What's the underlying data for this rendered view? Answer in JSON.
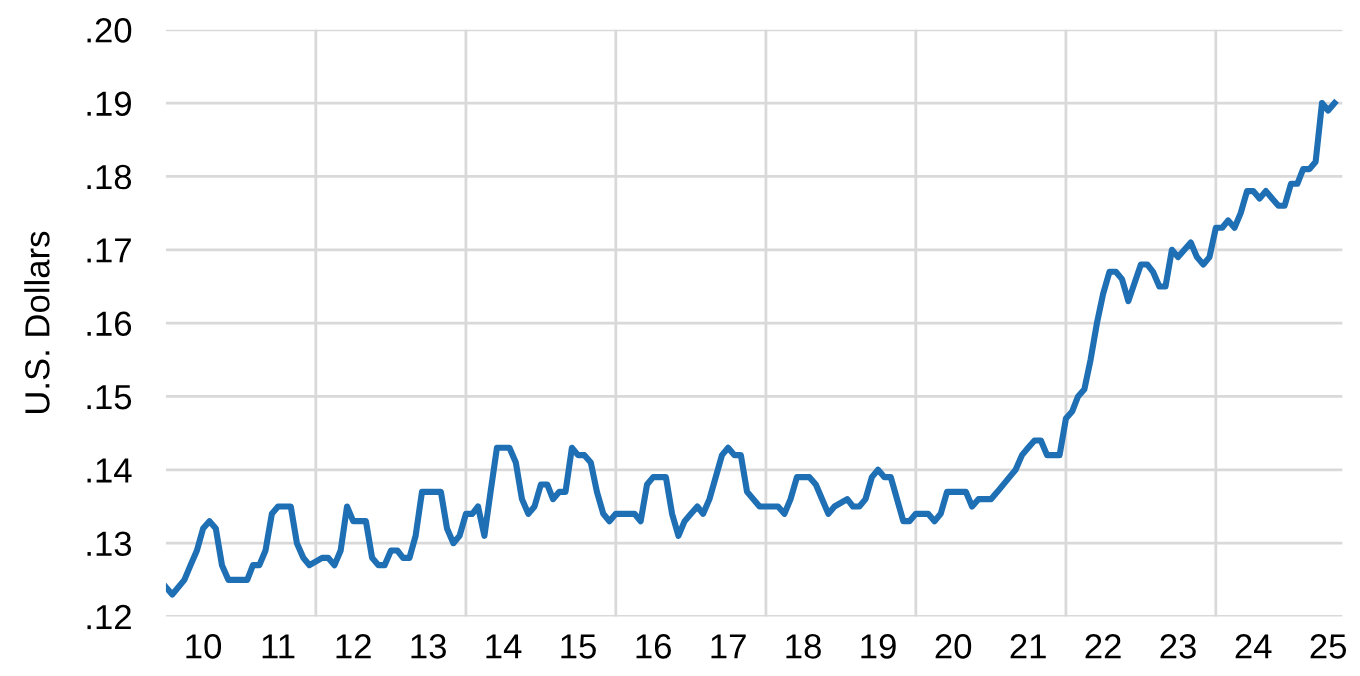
{
  "chart_data": {
    "type": "line",
    "ylabel": "U.S. Dollars",
    "grid": true,
    "marker": "none",
    "line_style": "solid",
    "xlim": [
      "2010-01-01",
      "2025-09-08"
    ],
    "ylim": [
      0.12,
      0.2
    ],
    "xticks": [
      {
        "value": "2010-07-01",
        "label": "10"
      },
      {
        "value": "2011-07-01",
        "label": "11"
      },
      {
        "value": "2012-07-01",
        "label": "12"
      },
      {
        "value": "2013-07-01",
        "label": "13"
      },
      {
        "value": "2014-07-01",
        "label": "14"
      },
      {
        "value": "2015-07-01",
        "label": "15"
      },
      {
        "value": "2016-07-01",
        "label": "16"
      },
      {
        "value": "2017-07-01",
        "label": "17"
      },
      {
        "value": "2018-07-01",
        "label": "18"
      },
      {
        "value": "2019-07-01",
        "label": "19"
      },
      {
        "value": "2020-07-01",
        "label": "20"
      },
      {
        "value": "2021-07-01",
        "label": "21"
      },
      {
        "value": "2022-07-01",
        "label": "22"
      },
      {
        "value": "2023-07-01",
        "label": "23"
      },
      {
        "value": "2024-07-01",
        "label": "24"
      },
      {
        "value": "2025-07-01",
        "label": "25"
      },
      {
        "value": "2012-01-01",
        "label": null
      },
      {
        "value": "2014-01-01",
        "label": null
      },
      {
        "value": "2016-01-01",
        "label": null
      },
      {
        "value": "2018-01-01",
        "label": null
      },
      {
        "value": "2020-01-01",
        "label": null
      },
      {
        "value": "2022-01-01",
        "label": null
      },
      {
        "value": "2024-01-01",
        "label": null
      }
    ],
    "yticks": [
      {
        "value": 0.12,
        "label": ".12"
      },
      {
        "value": 0.13,
        "label": ".13"
      },
      {
        "value": 0.14,
        "label": ".14"
      },
      {
        "value": 0.15,
        "label": ".15"
      },
      {
        "value": 0.16,
        "label": ".16"
      },
      {
        "value": 0.17,
        "label": ".17"
      },
      {
        "value": 0.18,
        "label": ".18"
      },
      {
        "value": 0.19,
        "label": ".19"
      },
      {
        "value": 0.2,
        "label": ".20"
      }
    ],
    "series": [
      {
        "color": "#1f6fb5",
        "x": [
          "2010-01",
          "2010-02",
          "2010-04",
          "2010-05",
          "2010-06",
          "2010-07",
          "2010-08",
          "2010-09",
          "2010-10",
          "2010-11",
          "2011-01",
          "2011-02",
          "2011-03",
          "2011-04",
          "2011-05",
          "2011-06",
          "2011-07",
          "2011-09",
          "2011-10",
          "2011-11",
          "2011-12",
          "2012-02",
          "2012-03",
          "2012-04",
          "2012-05",
          "2012-06",
          "2012-07",
          "2012-09",
          "2012-10",
          "2012-11",
          "2012-12",
          "2013-01",
          "2013-02",
          "2013-03",
          "2013-04",
          "2013-05",
          "2013-06",
          "2013-09",
          "2013-10",
          "2013-11",
          "2013-12",
          "2014-01",
          "2014-02",
          "2014-03",
          "2014-04",
          "2014-05",
          "2014-06",
          "2014-08",
          "2014-09",
          "2014-10",
          "2014-11",
          "2014-12",
          "2015-01",
          "2015-02",
          "2015-03",
          "2015-04",
          "2015-05",
          "2015-06",
          "2015-07",
          "2015-08",
          "2015-09",
          "2015-10",
          "2015-11",
          "2015-12",
          "2016-01",
          "2016-04",
          "2016-05",
          "2016-06",
          "2016-07",
          "2016-09",
          "2016-10",
          "2016-11",
          "2016-12",
          "2017-01",
          "2017-02",
          "2017-03",
          "2017-04",
          "2017-06",
          "2017-07",
          "2017-08",
          "2017-09",
          "2017-10",
          "2017-11",
          "2017-12",
          "2018-03",
          "2018-04",
          "2018-05",
          "2018-06",
          "2018-08",
          "2018-09",
          "2018-11",
          "2018-12",
          "2019-02",
          "2019-03",
          "2019-04",
          "2019-05",
          "2019-06",
          "2019-07",
          "2019-08",
          "2019-09",
          "2019-11",
          "2019-12",
          "2020-01",
          "2020-03",
          "2020-04",
          "2020-05",
          "2020-06",
          "2020-09",
          "2020-10",
          "2020-11",
          "2021-01",
          "2021-02",
          "2021-04",
          "2021-05",
          "2021-06",
          "2021-07",
          "2021-08",
          "2021-09",
          "2021-10",
          "2021-12",
          "2022-01",
          "2022-02",
          "2022-03",
          "2022-04",
          "2022-05",
          "2022-06",
          "2022-07",
          "2022-08",
          "2022-09",
          "2022-10",
          "2022-11",
          "2023-01",
          "2023-02",
          "2023-03",
          "2023-04",
          "2023-05",
          "2023-06",
          "2023-07",
          "2023-08",
          "2023-09",
          "2023-10",
          "2023-11",
          "2023-12",
          "2024-01",
          "2024-02",
          "2024-03",
          "2024-04",
          "2024-05",
          "2024-06",
          "2024-07",
          "2024-08",
          "2024-09",
          "2024-10",
          "2024-11",
          "2024-12",
          "2025-01",
          "2025-02",
          "2025-03",
          "2025-04",
          "2025-05",
          "2025-06",
          "2025-07",
          "2025-08"
        ],
        "values": [
          0.124,
          0.123,
          0.125,
          0.127,
          0.129,
          0.132,
          0.133,
          0.132,
          0.127,
          0.125,
          0.125,
          0.125,
          0.127,
          0.127,
          0.129,
          0.134,
          0.135,
          0.135,
          0.13,
          0.128,
          0.127,
          0.128,
          0.128,
          0.127,
          0.129,
          0.135,
          0.133,
          0.133,
          0.128,
          0.127,
          0.127,
          0.129,
          0.129,
          0.128,
          0.128,
          0.131,
          0.137,
          0.137,
          0.132,
          0.13,
          0.131,
          0.134,
          0.134,
          0.135,
          0.131,
          0.137,
          0.143,
          0.143,
          0.141,
          0.136,
          0.134,
          0.135,
          0.138,
          0.138,
          0.136,
          0.137,
          0.137,
          0.143,
          0.142,
          0.142,
          0.141,
          0.137,
          0.134,
          0.133,
          0.134,
          0.134,
          0.133,
          0.138,
          0.139,
          0.139,
          0.134,
          0.131,
          0.133,
          0.134,
          0.135,
          0.134,
          0.136,
          0.142,
          0.143,
          0.142,
          0.142,
          0.137,
          0.136,
          0.135,
          0.135,
          0.134,
          0.136,
          0.139,
          0.139,
          0.138,
          0.134,
          0.135,
          0.136,
          0.135,
          0.135,
          0.136,
          0.139,
          0.14,
          0.139,
          0.139,
          0.133,
          0.133,
          0.134,
          0.134,
          0.133,
          0.134,
          0.137,
          0.137,
          0.135,
          0.136,
          0.136,
          0.137,
          0.139,
          0.14,
          0.142,
          0.143,
          0.144,
          0.144,
          0.142,
          0.142,
          0.147,
          0.148,
          0.15,
          0.151,
          0.155,
          0.16,
          0.164,
          0.167,
          0.167,
          0.166,
          0.163,
          0.168,
          0.168,
          0.167,
          0.165,
          0.165,
          0.17,
          0.169,
          0.17,
          0.171,
          0.169,
          0.168,
          0.169,
          0.173,
          0.173,
          0.174,
          0.173,
          0.175,
          0.178,
          0.178,
          0.177,
          0.178,
          0.177,
          0.176,
          0.176,
          0.179,
          0.179,
          0.181,
          0.181,
          0.182,
          0.19,
          0.189,
          0.19
        ]
      }
    ]
  }
}
